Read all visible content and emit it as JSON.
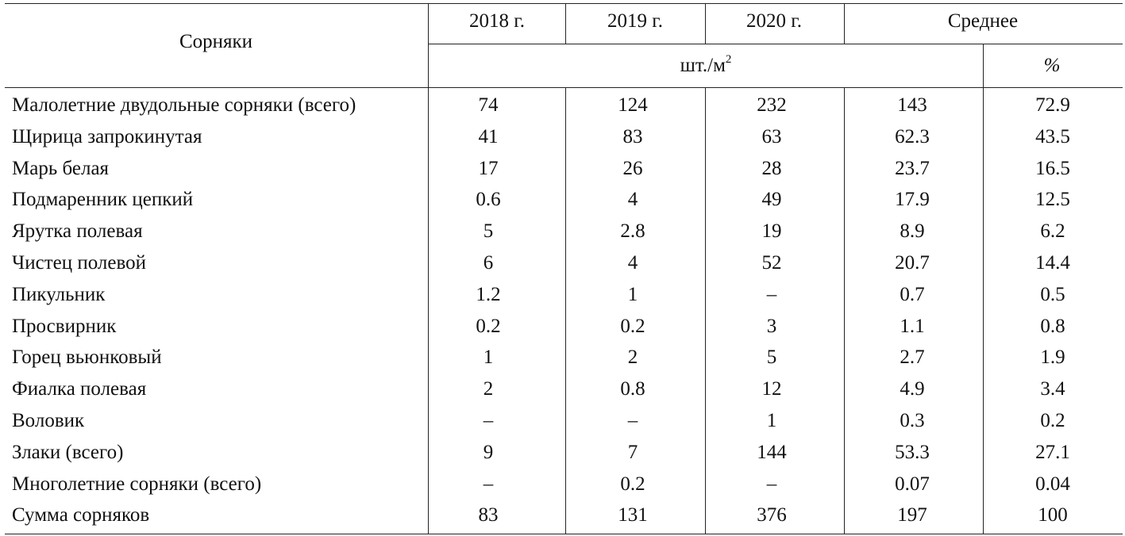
{
  "table": {
    "header": {
      "weeds": "Сорняки",
      "years": [
        "2018 г.",
        "2019 г.",
        "2020 г."
      ],
      "average": "Среднее",
      "unit_base": "шт./м",
      "unit_exp": "2",
      "percent": "%"
    },
    "rows": [
      {
        "name": "Малолетние двудольные сорняки (всего)",
        "y2018": "74",
        "y2019": "124",
        "y2020": "232",
        "avg": "143",
        "pct": "72.9"
      },
      {
        "name": "Щирица запрокинутая",
        "y2018": "41",
        "y2019": "83",
        "y2020": "63",
        "avg": "62.3",
        "pct": "43.5"
      },
      {
        "name": "Марь белая",
        "y2018": "17",
        "y2019": "26",
        "y2020": "28",
        "avg": "23.7",
        "pct": "16.5"
      },
      {
        "name": "Подмаренник цепкий",
        "y2018": "0.6",
        "y2019": "4",
        "y2020": "49",
        "avg": "17.9",
        "pct": "12.5"
      },
      {
        "name": "Ярутка полевая",
        "y2018": "5",
        "y2019": "2.8",
        "y2020": "19",
        "avg": "8.9",
        "pct": "6.2"
      },
      {
        "name": "Чистец полевой",
        "y2018": "6",
        "y2019": "4",
        "y2020": "52",
        "avg": "20.7",
        "pct": "14.4"
      },
      {
        "name": "Пикульник",
        "y2018": "1.2",
        "y2019": "1",
        "y2020": "–",
        "avg": "0.7",
        "pct": "0.5"
      },
      {
        "name": "Просвирник",
        "y2018": "0.2",
        "y2019": "0.2",
        "y2020": "3",
        "avg": "1.1",
        "pct": "0.8"
      },
      {
        "name": "Горец вьюнковый",
        "y2018": "1",
        "y2019": "2",
        "y2020": "5",
        "avg": "2.7",
        "pct": "1.9"
      },
      {
        "name": "Фиалка полевая",
        "y2018": "2",
        "y2019": "0.8",
        "y2020": "12",
        "avg": "4.9",
        "pct": "3.4"
      },
      {
        "name": "Воловик",
        "y2018": "–",
        "y2019": "–",
        "y2020": "1",
        "avg": "0.3",
        "pct": "0.2"
      },
      {
        "name": "Злаки (всего)",
        "y2018": "9",
        "y2019": "7",
        "y2020": "144",
        "avg": "53.3",
        "pct": "27.1"
      },
      {
        "name": "Многолетние сорняки (всего)",
        "y2018": "–",
        "y2019": "0.2",
        "y2020": "–",
        "avg": "0.07",
        "pct": "0.04"
      },
      {
        "name": "Сумма сорняков",
        "y2018": "83",
        "y2019": "131",
        "y2020": "376",
        "avg": "197",
        "pct": "100"
      }
    ]
  }
}
